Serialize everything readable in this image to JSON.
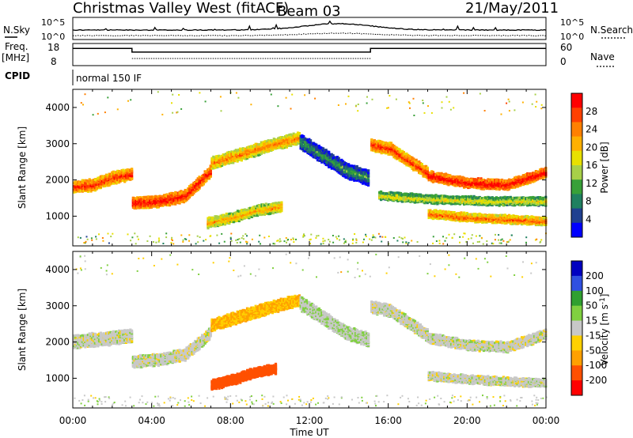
{
  "header": {
    "station": "Christmas Valley West (fitACF)",
    "beam": "Beam 03",
    "date": "21/May/2011"
  },
  "noise_panel": {
    "left_label": "N.Sky",
    "right_label": "N.Search",
    "left_ticks": [
      "10^5",
      "10^0"
    ],
    "right_ticks": [
      "10^5",
      "10^0"
    ]
  },
  "freq_panel": {
    "left_label_line1": "Freq.",
    "left_label_line2": "[MHz]",
    "right_label": "Nave",
    "left_ticks": [
      "18",
      "8"
    ],
    "right_ticks": [
      "60",
      "0"
    ],
    "freq_steps": [
      {
        "start_hour": 0,
        "end_hour": 3.0,
        "freq_mhz": 16.0
      },
      {
        "start_hour": 3.0,
        "end_hour": 15.1,
        "freq_mhz": 14.2
      },
      {
        "start_hour": 15.1,
        "end_hour": 24,
        "freq_mhz": 16.0
      }
    ]
  },
  "cpid": {
    "label": "CPID",
    "value": "normal 150 IF"
  },
  "chart_data": [
    {
      "type": "heatmap",
      "name": "power",
      "ylabel": "Slant Range [km]",
      "colorbar_label": "Power [dB]",
      "yticks": [
        "4000",
        "3000",
        "2000",
        "1000"
      ],
      "ylim": [
        180,
        4500
      ],
      "colorbar_ticks": [
        "28",
        "24",
        "20",
        "16",
        "12",
        "8",
        "4"
      ],
      "colorbar_colors": [
        "#ff0000",
        "#ff4000",
        "#ff8000",
        "#ffb000",
        "#e8e000",
        "#a8d048",
        "#38a038",
        "#208060",
        "#204090",
        "#0000ff"
      ],
      "bands": [
        {
          "start_hour": 0.0,
          "end_hour": 3.0,
          "center_km": [
            1850,
            1900,
            2100,
            2200
          ],
          "width_km": 300,
          "level_db": 24
        },
        {
          "start_hour": 3.0,
          "end_hour": 7.0,
          "center_km": [
            1400,
            1450,
            1600,
            2300
          ],
          "width_km": 300,
          "level_db": 26
        },
        {
          "start_hour": 7.0,
          "end_hour": 11.5,
          "center_km": [
            2500,
            2750,
            3000,
            3200
          ],
          "width_km": 300,
          "level_db": 20
        },
        {
          "start_hour": 11.5,
          "end_hour": 15.0,
          "center_km": [
            3100,
            2700,
            2300,
            2100
          ],
          "width_km": 400,
          "level_db": 6
        },
        {
          "start_hour": 15.1,
          "end_hour": 18.0,
          "center_km": [
            3000,
            2900,
            2550,
            2200
          ],
          "width_km": 300,
          "level_db": 24
        },
        {
          "start_hour": 18.0,
          "end_hour": 24.0,
          "center_km": [
            2150,
            1950,
            1900,
            2250
          ],
          "width_km": 250,
          "level_db": 27
        },
        {
          "start_hour": 6.8,
          "end_hour": 10.6,
          "center_km": [
            850,
            1000,
            1200,
            1300
          ],
          "width_km": 250,
          "level_db": 18
        },
        {
          "start_hour": 15.5,
          "end_hour": 24.0,
          "center_km": [
            1600,
            1500,
            1450,
            1450
          ],
          "width_km": 200,
          "level_db": 14
        },
        {
          "start_hour": 18.0,
          "end_hour": 24.0,
          "center_km": [
            1100,
            1000,
            950,
            900
          ],
          "width_km": 200,
          "level_db": 22
        }
      ]
    },
    {
      "type": "heatmap",
      "name": "velocity",
      "ylabel": "Slant Range [km]",
      "colorbar_label": "Velocity [m s^-1]",
      "yticks": [
        "4000",
        "3000",
        "2000",
        "1000"
      ],
      "ylim": [
        180,
        4500
      ],
      "colorbar_ticks": [
        "200",
        "100",
        "50",
        "15",
        "-15",
        "-50",
        "-100",
        "-200"
      ],
      "colorbar_colors": [
        "#0000c0",
        "#3050e0",
        "#30a030",
        "#80d040",
        "#c8c8c8",
        "#ffd000",
        "#ffa000",
        "#ff5000",
        "#ff0000"
      ],
      "bands": [
        {
          "start_hour": 0.0,
          "end_hour": 3.0,
          "center_km": [
            2050,
            2100,
            2150,
            2200
          ],
          "width_km": 350,
          "velocity": 0
        },
        {
          "start_hour": 3.0,
          "end_hour": 7.0,
          "center_km": [
            1500,
            1550,
            1700,
            2300
          ],
          "width_km": 300,
          "velocity": 0
        },
        {
          "start_hour": 7.0,
          "end_hour": 11.5,
          "center_km": [
            2500,
            2750,
            3000,
            3200
          ],
          "width_km": 300,
          "velocity": -50
        },
        {
          "start_hour": 11.5,
          "end_hour": 15.0,
          "center_km": [
            3100,
            2700,
            2300,
            2100
          ],
          "width_km": 350,
          "velocity": 10
        },
        {
          "start_hour": 15.1,
          "end_hour": 18.0,
          "center_km": [
            3000,
            2900,
            2550,
            2200
          ],
          "width_km": 300,
          "velocity": 0
        },
        {
          "start_hour": 18.0,
          "end_hour": 24.0,
          "center_km": [
            2150,
            1950,
            1900,
            2250
          ],
          "width_km": 250,
          "velocity": 0
        },
        {
          "start_hour": 7.0,
          "end_hour": 10.3,
          "center_km": [
            850,
            1000,
            1200,
            1300
          ],
          "width_km": 250,
          "velocity": -120
        },
        {
          "start_hour": 18.0,
          "end_hour": 24.0,
          "center_km": [
            1100,
            1000,
            950,
            900
          ],
          "width_km": 200,
          "velocity": 0
        }
      ]
    }
  ],
  "x_axis": {
    "label": "Time UT",
    "ticks": [
      "00:00",
      "04:00",
      "08:00",
      "12:00",
      "16:00",
      "20:00",
      "00:00"
    ],
    "range_hours": [
      0,
      24
    ]
  }
}
